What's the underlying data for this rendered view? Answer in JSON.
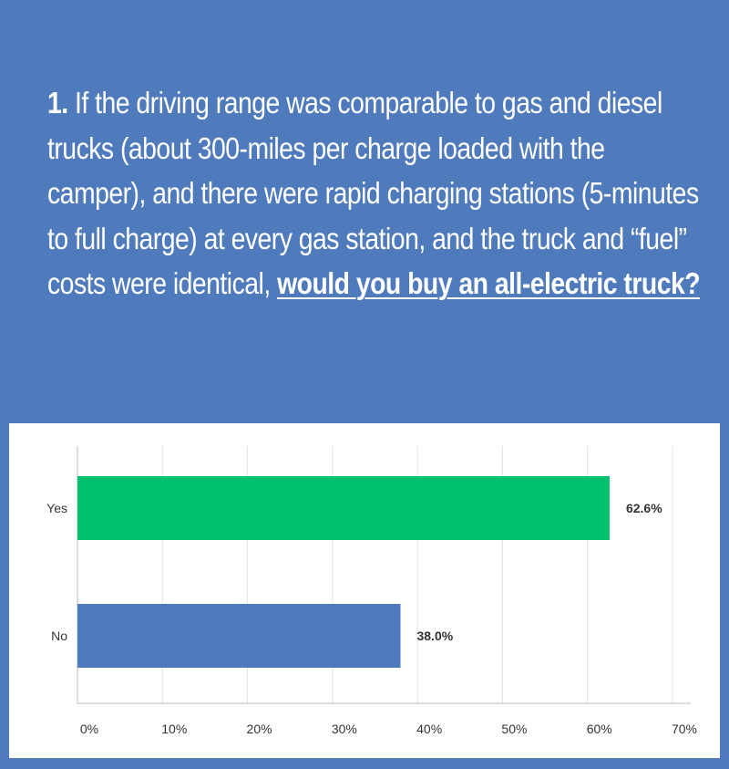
{
  "question": {
    "number": "1.",
    "text": "If the driving range was comparable to gas and diesel trucks (about 300-miles per charge loaded with the camper), and there were rapid charging stations (5-minutes to full charge) at every gas station, and the truck and “fuel” costs were identical,",
    "emphasis": "would you buy an all-electric truck?"
  },
  "chart_data": {
    "type": "bar",
    "orientation": "horizontal",
    "categories": [
      "Yes",
      "No"
    ],
    "values": [
      62.6,
      38.0
    ],
    "value_labels": [
      "62.6%",
      "38.0%"
    ],
    "colors": [
      "#00c16e",
      "#4f7bbc"
    ],
    "xlim": [
      0,
      70
    ],
    "x_ticks": [
      0,
      10,
      20,
      30,
      40,
      50,
      60,
      70
    ],
    "x_tick_labels": [
      "0%",
      "10%",
      "20%",
      "30%",
      "40%",
      "50%",
      "60%",
      "70%"
    ],
    "grid": "vertical",
    "title": "",
    "xlabel": "",
    "ylabel": ""
  }
}
